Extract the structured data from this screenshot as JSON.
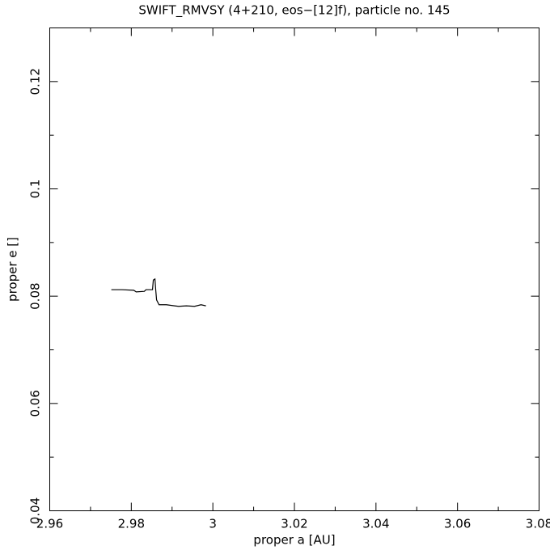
{
  "chart_data": {
    "type": "line",
    "title": "SWIFT_RMVSY (4+210, eos−[12]f), particle no. 145",
    "xlabel": "proper a [AU]",
    "ylabel": "proper e []",
    "x": [
      2.9751,
      2.9777,
      2.9806,
      2.9812,
      2.9832,
      2.9836,
      2.9852,
      2.9854,
      2.9858,
      2.986,
      2.9862,
      2.9868,
      2.9886,
      2.9906,
      2.9916,
      2.9935,
      2.9955,
      2.9971,
      2.9983
    ],
    "series": [
      {
        "color": "#000000",
        "values": [
          0.0812,
          0.0812,
          0.0811,
          0.0808,
          0.0809,
          0.0812,
          0.0812,
          0.083,
          0.0832,
          0.0811,
          0.0793,
          0.0784,
          0.0784,
          0.0782,
          0.0781,
          0.0782,
          0.0781,
          0.0784,
          0.0782
        ]
      }
    ],
    "xlim": [
      2.96,
      3.08
    ],
    "ylim": [
      0.04,
      0.13
    ],
    "xticks": [
      2.96,
      2.98,
      3,
      3.02,
      3.04,
      3.06,
      3.08
    ],
    "yticks": [
      0.04,
      0.06,
      0.08,
      0.1,
      0.12
    ],
    "xminorticks": [
      2.97,
      2.99,
      3.01,
      3.03,
      3.05,
      3.07
    ],
    "yminorticks": [
      0.05,
      0.07,
      0.09,
      0.11
    ]
  }
}
